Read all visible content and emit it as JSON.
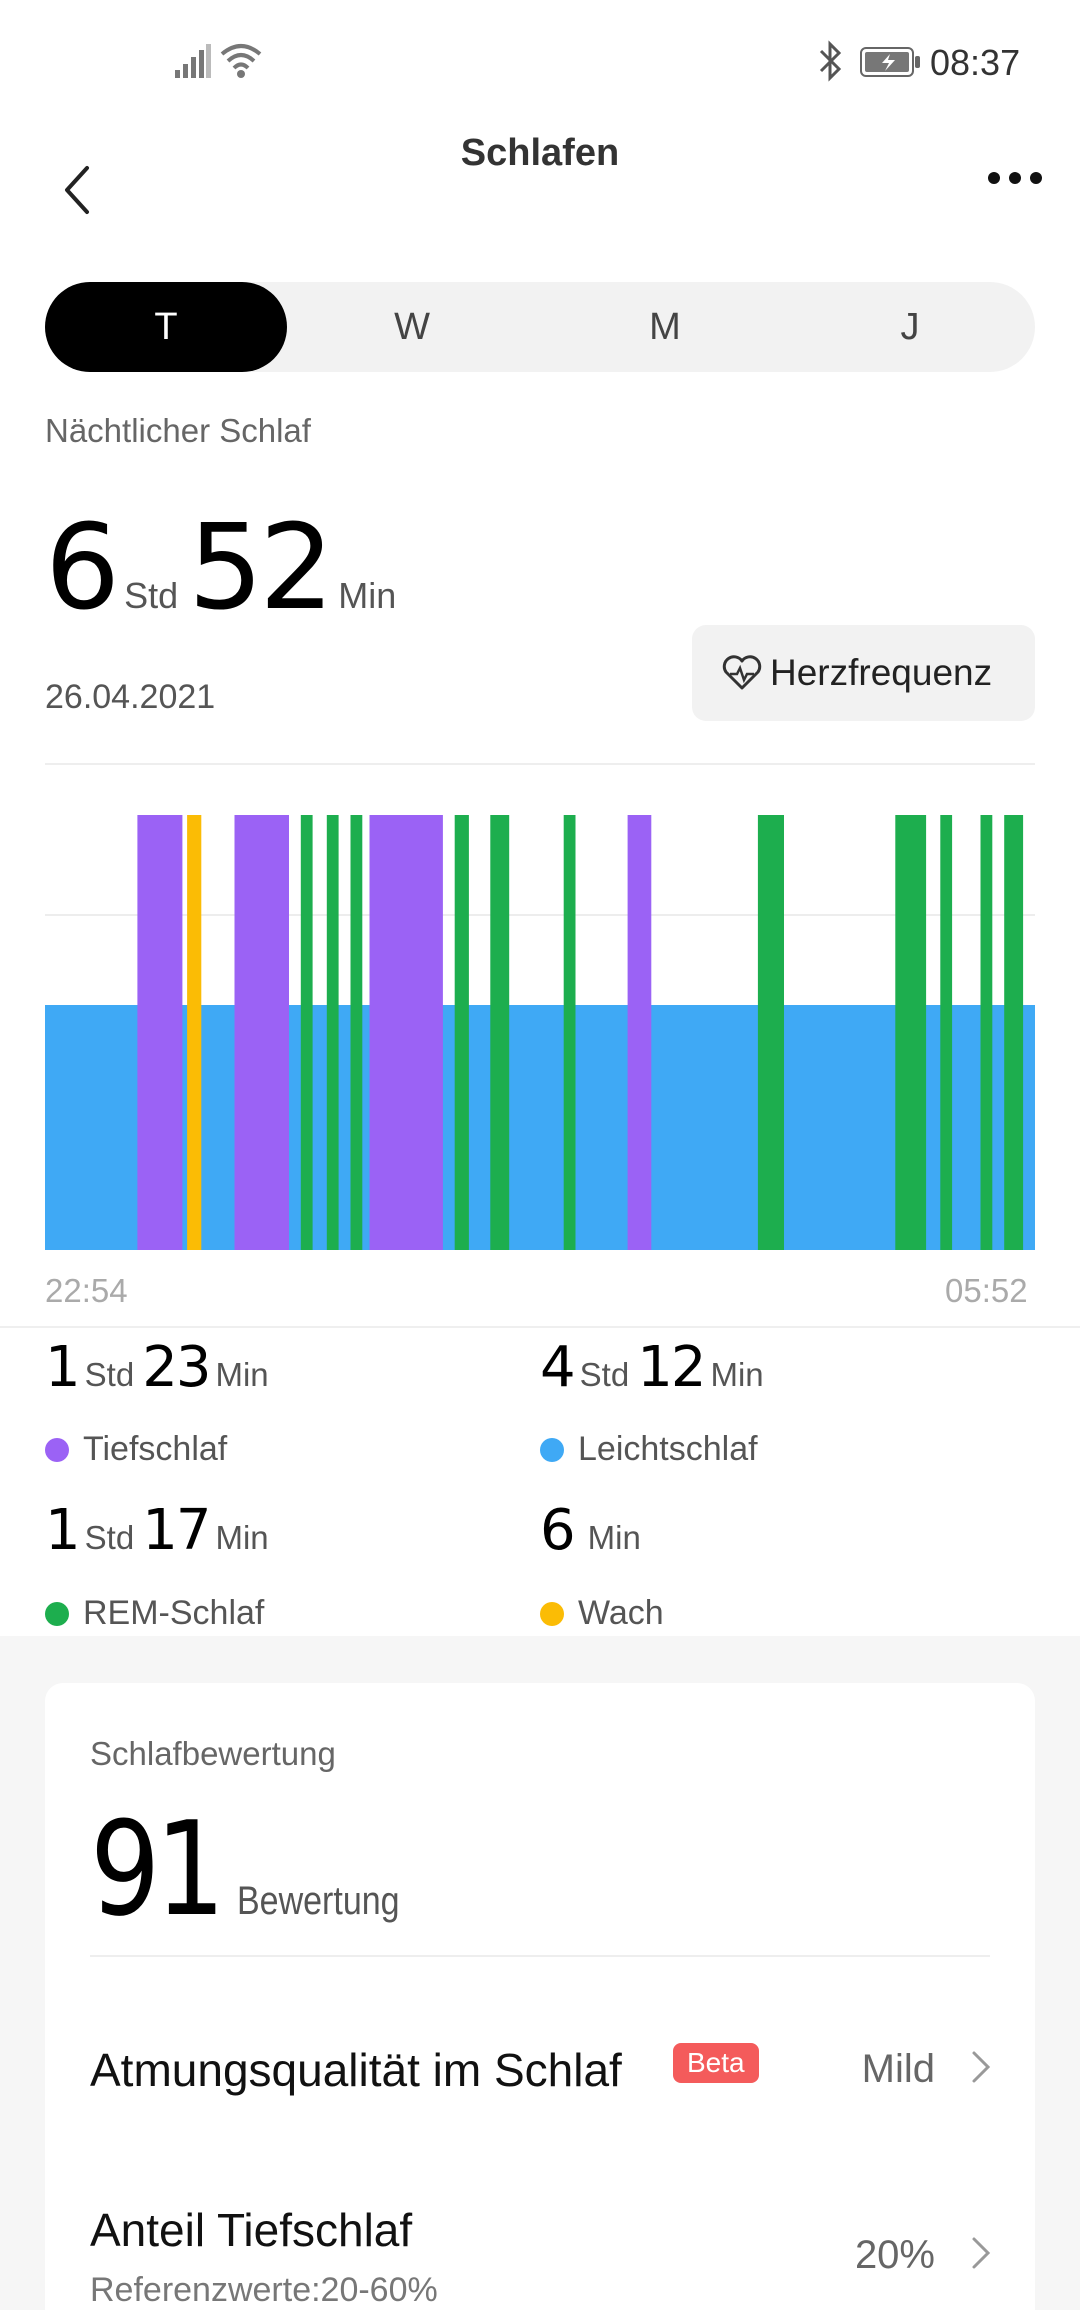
{
  "status_bar": {
    "time": "08:37"
  },
  "header": {
    "title": "Schlafen"
  },
  "tabs": [
    {
      "label": "T",
      "active": true
    },
    {
      "label": "W",
      "active": false
    },
    {
      "label": "M",
      "active": false
    },
    {
      "label": "J",
      "active": false
    }
  ],
  "summary": {
    "section_label": "Nächtlicher Schlaf",
    "hours": "6",
    "hours_unit": "Std",
    "minutes": "52",
    "minutes_unit": "Min",
    "date": "26.04.2021",
    "heart_rate_button": "Herzfrequenz"
  },
  "colors": {
    "deep": "#9B62F5",
    "light": "#3FA9F5",
    "rem": "#1DAE4E",
    "awake": "#FBBC05"
  },
  "chart_data": {
    "type": "sleep_timeline",
    "x_start": "22:54",
    "x_end": "05:52",
    "total_minutes": 418,
    "stage_levels": {
      "light": 1,
      "deep": 2,
      "rem": 2,
      "awake": 2
    },
    "background_stage": "light",
    "segments": [
      {
        "stage": "deep",
        "start_min": 39,
        "end_min": 58
      },
      {
        "stage": "awake",
        "start_min": 60,
        "end_min": 66
      },
      {
        "stage": "deep",
        "start_min": 80,
        "end_min": 103
      },
      {
        "stage": "rem",
        "start_min": 108,
        "end_min": 113
      },
      {
        "stage": "rem",
        "start_min": 119,
        "end_min": 124
      },
      {
        "stage": "rem",
        "start_min": 129,
        "end_min": 134
      },
      {
        "stage": "deep",
        "start_min": 137,
        "end_min": 168
      },
      {
        "stage": "rem",
        "start_min": 173,
        "end_min": 179
      },
      {
        "stage": "rem",
        "start_min": 188,
        "end_min": 196
      },
      {
        "stage": "rem",
        "start_min": 219,
        "end_min": 224
      },
      {
        "stage": "deep",
        "start_min": 246,
        "end_min": 256
      },
      {
        "stage": "rem",
        "start_min": 301,
        "end_min": 312
      },
      {
        "stage": "rem",
        "start_min": 359,
        "end_min": 372
      },
      {
        "stage": "rem",
        "start_min": 378,
        "end_min": 383
      },
      {
        "stage": "rem",
        "start_min": 395,
        "end_min": 400
      },
      {
        "stage": "rem",
        "start_min": 405,
        "end_min": 413
      }
    ]
  },
  "stats": [
    {
      "h": "1",
      "h_unit": "Std",
      "m": "23",
      "m_unit": "Min",
      "label": "Tiefschlaf",
      "color": "#9B62F5"
    },
    {
      "h": "4",
      "h_unit": "Std",
      "m": "12",
      "m_unit": "Min",
      "label": "Leichtschlaf",
      "color": "#3FA9F5"
    },
    {
      "h": "1",
      "h_unit": "Std",
      "m": "17",
      "m_unit": "Min",
      "label": "REM-Schlaf",
      "color": "#1DAE4E"
    },
    {
      "h": "",
      "h_unit": "",
      "m": "6",
      "m_unit": "Min",
      "label": "Wach",
      "color": "#FBBC05"
    }
  ],
  "score_card": {
    "title": "Schlafbewertung",
    "score": "91",
    "score_label": "Bewertung",
    "rows": [
      {
        "title": "Atmungsqualität im Schlaf",
        "badge": "Beta",
        "value": "Mild"
      },
      {
        "title": "Anteil Tiefschlaf",
        "sub": "Referenzwerte:20-60%",
        "value": "20%"
      }
    ]
  }
}
